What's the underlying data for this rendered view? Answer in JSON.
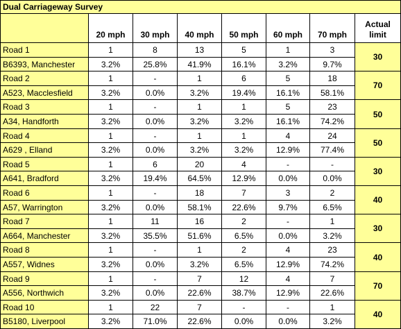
{
  "title": "Dual Carriageway Survey",
  "header": {
    "columns": [
      "20 mph",
      "30 mph",
      "40 mph",
      "50 mph",
      "60 mph",
      "70 mph"
    ],
    "limit": "Actual limit"
  },
  "table": {
    "rows": [
      {
        "name": "Road 1",
        "location": "B6393, Manchester",
        "counts": [
          "1",
          "8",
          "13",
          "5",
          "1",
          "3"
        ],
        "percents": [
          "3.2%",
          "25.8%",
          "41.9%",
          "16.1%",
          "3.2%",
          "9.7%"
        ],
        "limit": "30"
      },
      {
        "name": "Road 2",
        "location": "A523, Macclesfield",
        "counts": [
          "1",
          "-",
          "1",
          "6",
          "5",
          "18"
        ],
        "percents": [
          "3.2%",
          "0.0%",
          "3.2%",
          "19.4%",
          "16.1%",
          "58.1%"
        ],
        "limit": "70"
      },
      {
        "name": "Road 3",
        "location": "A34, Handforth",
        "counts": [
          "1",
          "-",
          "1",
          "1",
          "5",
          "23"
        ],
        "percents": [
          "3.2%",
          "0.0%",
          "3.2%",
          "3.2%",
          "16.1%",
          "74.2%"
        ],
        "limit": "50"
      },
      {
        "name": "Road 4",
        "location": "A629 , Elland",
        "counts": [
          "1",
          "-",
          "1",
          "1",
          "4",
          "24"
        ],
        "percents": [
          "3.2%",
          "0.0%",
          "3.2%",
          "3.2%",
          "12.9%",
          "77.4%"
        ],
        "limit": "50"
      },
      {
        "name": "Road 5",
        "location": "A641, Bradford",
        "counts": [
          "1",
          "6",
          "20",
          "4",
          "-",
          "-"
        ],
        "percents": [
          "3.2%",
          "19.4%",
          "64.5%",
          "12.9%",
          "0.0%",
          "0.0%"
        ],
        "limit": "30"
      },
      {
        "name": "Road 6",
        "location": "A57, Warrington",
        "counts": [
          "1",
          "-",
          "18",
          "7",
          "3",
          "2"
        ],
        "percents": [
          "3.2%",
          "0.0%",
          "58.1%",
          "22.6%",
          "9.7%",
          "6.5%"
        ],
        "limit": "40"
      },
      {
        "name": "Road 7",
        "location": "A664, Manchester",
        "counts": [
          "1",
          "11",
          "16",
          "2",
          "-",
          "1"
        ],
        "percents": [
          "3.2%",
          "35.5%",
          "51.6%",
          "6.5%",
          "0.0%",
          "3.2%"
        ],
        "limit": "30"
      },
      {
        "name": "Road 8",
        "location": "A557, Widnes",
        "counts": [
          "1",
          "-",
          "1",
          "2",
          "4",
          "23"
        ],
        "percents": [
          "3.2%",
          "0.0%",
          "3.2%",
          "6.5%",
          "12.9%",
          "74.2%"
        ],
        "limit": "40"
      },
      {
        "name": "Road 9",
        "location": "A556, Northwich",
        "counts": [
          "1",
          "-",
          "7",
          "12",
          "4",
          "7"
        ],
        "percents": [
          "3.2%",
          "0.0%",
          "22.6%",
          "38.7%",
          "12.9%",
          "22.6%"
        ],
        "limit": "70"
      },
      {
        "name": "Road 10",
        "location": "B5180, Liverpool",
        "counts": [
          "1",
          "22",
          "7",
          "-",
          "-",
          "1"
        ],
        "percents": [
          "3.2%",
          "71.0%",
          "22.6%",
          "0.0%",
          "0.0%",
          "3.2%"
        ],
        "limit": "40"
      }
    ]
  }
}
